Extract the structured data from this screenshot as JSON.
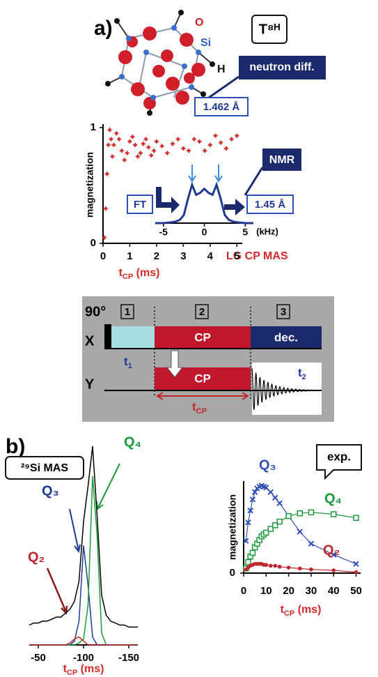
{
  "panels": {
    "a": "a)",
    "b": "b)"
  },
  "molecule": {
    "label": "T⁸ᴴ",
    "atoms": [
      "O",
      "Si",
      "H"
    ],
    "method": "neutron diff.",
    "bond": "1.462 Å"
  },
  "nmr": {
    "method": "NMR",
    "ft": "FT",
    "bond": "1.45 Å",
    "technique": "LG CP MAS"
  },
  "pulse_sequence": {
    "pulse": "90°",
    "steps": [
      "1",
      "2",
      "3"
    ],
    "channels": [
      "X",
      "Y"
    ],
    "blocks": [
      "CP",
      "CP",
      "dec."
    ],
    "t1": [
      "t",
      "1"
    ],
    "t2": [
      "t",
      "2"
    ],
    "tcp": [
      "t",
      "CP"
    ]
  },
  "spectrum_label": "²⁹Si MAS",
  "exp_label": "exp.",
  "chart_data": [
    {
      "type": "scatter",
      "ylabel": "magnetization",
      "xlabel": [
        "t",
        "CP",
        " (ms)"
      ],
      "x": [
        0.05,
        0.1,
        0.15,
        0.2,
        0.25,
        0.3,
        0.35,
        0.4,
        0.5,
        0.6,
        0.7,
        0.8,
        0.9,
        1.0,
        1.1,
        1.2,
        1.3,
        1.4,
        1.5,
        1.6,
        1.7,
        1.8,
        1.9,
        2.0,
        2.2,
        2.4,
        2.6,
        2.8,
        3.0,
        3.2,
        3.4,
        3.6,
        3.8,
        4.0,
        4.2,
        4.4,
        4.6,
        4.8,
        5.0
      ],
      "series": [
        {
          "color": "#d42a2a",
          "marker": "plus",
          "values": [
            0.05,
            0.3,
            0.6,
            0.85,
            0.98,
            0.9,
            0.75,
            0.85,
            0.95,
            0.9,
            0.8,
            0.72,
            0.78,
            0.88,
            0.92,
            0.85,
            0.75,
            0.78,
            0.86,
            0.9,
            0.83,
            0.76,
            0.8,
            0.88,
            0.84,
            0.78,
            0.86,
            0.9,
            0.82,
            0.8,
            0.9,
            0.88,
            0.8,
            0.85,
            0.93,
            0.87,
            0.82,
            0.9,
            0.93
          ]
        }
      ],
      "xlim": [
        0,
        5.2
      ],
      "ylim": [
        0,
        1.03
      ],
      "xticks": [
        0,
        1,
        2,
        3,
        4,
        5
      ],
      "yticks": [
        0,
        1
      ]
    },
    {
      "type": "line",
      "xlabel": "(kHz)",
      "x": [
        -6,
        -5.5,
        -5,
        -4.5,
        -4,
        -3.5,
        -3,
        -2.5,
        -2,
        -1.5,
        -1,
        -0.5,
        0,
        0.5,
        1,
        1.5,
        2,
        2.5,
        3,
        3.5,
        4,
        4.5,
        5,
        5.5,
        6
      ],
      "series": [
        {
          "color": "#1f3a93",
          "values": [
            0,
            0,
            0,
            0.01,
            0.02,
            0.04,
            0.08,
            0.2,
            0.6,
            0.95,
            0.7,
            0.75,
            0.85,
            0.75,
            0.7,
            0.95,
            0.6,
            0.2,
            0.08,
            0.04,
            0.02,
            0.01,
            0,
            0,
            0
          ]
        }
      ],
      "xlim": [
        -6,
        6
      ],
      "ylim": [
        0,
        1
      ],
      "xticks": [
        -5,
        0,
        5
      ]
    },
    {
      "type": "line",
      "xlabel": [
        "t",
        "CP",
        " (ms)"
      ],
      "x": [
        -40,
        -45,
        -50,
        -55,
        -60,
        -65,
        -70,
        -75,
        -80,
        -85,
        -90,
        -95,
        -100,
        -105,
        -110,
        -115,
        -120,
        -125,
        -130,
        -135,
        -140,
        -145,
        -150,
        -155,
        -160
      ],
      "series": [
        {
          "color": "#000000",
          "values": [
            0.1,
            0.11,
            0.11,
            0.12,
            0.12,
            0.13,
            0.14,
            0.14,
            0.16,
            0.18,
            0.22,
            0.32,
            0.62,
            0.8,
            1.0,
            0.65,
            0.25,
            0.15,
            0.12,
            0.11,
            0.1,
            0.1,
            0.09,
            0.09,
            0.09
          ]
        },
        {
          "name": "Q₃",
          "color": "#1f3a93",
          "values": [
            0,
            0,
            0,
            0,
            0,
            0,
            0,
            0,
            0,
            0,
            0.02,
            0.12,
            0.5,
            0.3,
            0.04,
            0,
            0,
            0,
            0,
            0,
            0,
            0,
            0,
            0,
            0
          ]
        },
        {
          "name": "Q₄",
          "color": "#1a9a3a",
          "values": [
            0,
            0,
            0,
            0,
            0,
            0,
            0,
            0,
            0,
            0,
            0,
            0.01,
            0.03,
            0.2,
            0.85,
            0.55,
            0.06,
            0,
            0,
            0,
            0,
            0,
            0,
            0,
            0
          ]
        },
        {
          "name": "Q₂",
          "color": "#c0272d",
          "values": [
            0,
            0,
            0,
            0,
            0,
            0,
            0,
            0,
            0,
            0.01,
            0.03,
            0.04,
            0.02,
            0,
            0,
            0,
            0,
            0,
            0,
            0,
            0,
            0,
            0,
            0,
            0
          ]
        }
      ],
      "xlim": [
        -40,
        -160
      ],
      "ylim": [
        0,
        1
      ],
      "xticks": [
        -50,
        -100,
        -150
      ]
    },
    {
      "type": "scatter",
      "ylabel": "magnetization",
      "xlabel": [
        "t",
        "CP",
        " (ms)"
      ],
      "x": [
        1,
        2,
        3,
        4,
        5,
        6,
        7,
        8,
        9,
        10,
        12,
        14,
        16,
        20,
        25,
        30,
        40,
        50
      ],
      "series": [
        {
          "name": "Q₃",
          "color": "#2e4fb5",
          "marker": "x",
          "values": [
            0.35,
            0.55,
            0.68,
            0.8,
            0.88,
            0.92,
            0.94,
            0.95,
            0.94,
            0.93,
            0.88,
            0.82,
            0.76,
            0.62,
            0.45,
            0.32,
            0.2,
            0.1
          ]
        },
        {
          "name": "Q₄",
          "color": "#1a9a3a",
          "marker": "square",
          "values": [
            0.05,
            0.12,
            0.18,
            0.22,
            0.28,
            0.32,
            0.36,
            0.4,
            0.42,
            0.44,
            0.48,
            0.52,
            0.56,
            0.62,
            0.65,
            0.66,
            0.64,
            0.6
          ]
        },
        {
          "name": "Q₂",
          "color": "#c0272d",
          "marker": "dot",
          "values": [
            0.04,
            0.06,
            0.08,
            0.09,
            0.1,
            0.1,
            0.1,
            0.1,
            0.09,
            0.09,
            0.08,
            0.08,
            0.07,
            0.06,
            0.05,
            0.04,
            0.03,
            0.01
          ]
        }
      ],
      "xlim": [
        0,
        52
      ],
      "ylim": [
        0,
        1
      ],
      "xticks": [
        0,
        10,
        20,
        30,
        40,
        50
      ],
      "yticks": [
        0
      ]
    }
  ]
}
